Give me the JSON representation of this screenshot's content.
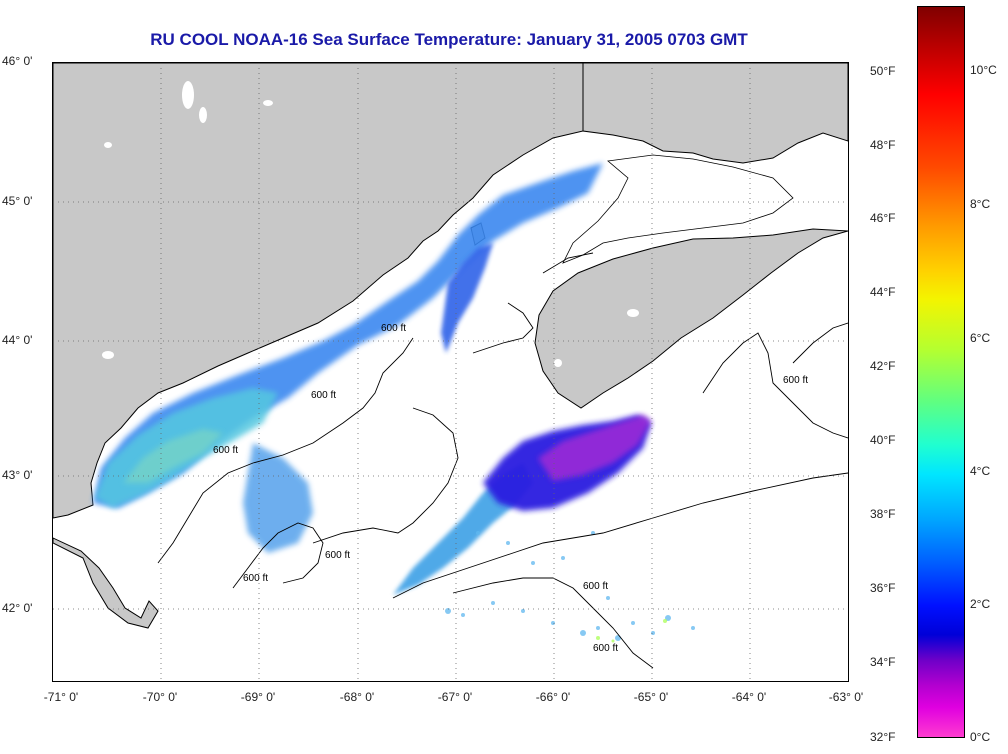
{
  "title": "RU COOL  NOAA-16  Sea Surface Temperature:  January 31, 2005 0703 GMT",
  "lat_labels": [
    "46° 0'",
    "45° 0'",
    "44° 0'",
    "43° 0'",
    "42° 0'"
  ],
  "lon_labels": [
    "-71° 0'",
    "-70° 0'",
    "-69° 0'",
    "-68° 0'",
    "-67° 0'",
    "-66° 0'",
    "-65° 0'",
    "-64° 0'",
    "-63° 0'"
  ],
  "contour_label": "600 ft",
  "colorbar": {
    "fahrenheit": [
      "50°F",
      "48°F",
      "46°F",
      "44°F",
      "42°F",
      "40°F",
      "38°F",
      "36°F",
      "34°F",
      "32°F"
    ],
    "celsius": [
      "10°C",
      "8°C",
      "6°C",
      "4°C",
      "2°C",
      "0°C"
    ]
  },
  "colors": {
    "land": "#c8c8c8",
    "title": "#1a1aa8",
    "coast": "#000000"
  }
}
